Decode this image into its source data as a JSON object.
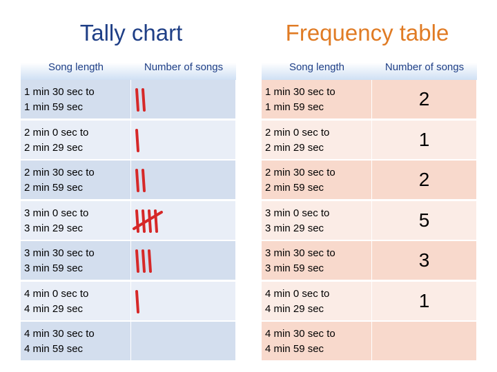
{
  "tally_chart": {
    "title": "Tally chart",
    "columns": [
      "Song length",
      "Number of songs"
    ]
  },
  "frequency_table": {
    "title": "Frequency table",
    "columns": [
      "Song length",
      "Number of songs"
    ]
  },
  "tally_color": "#d62828",
  "rows": [
    {
      "song_length": [
        "1 min 30 sec to",
        "1 min 59 sec"
      ],
      "tally": 2,
      "count": "2"
    },
    {
      "song_length": [
        "2 min 0  sec  to",
        "2 min 29 sec"
      ],
      "tally": 1,
      "count": "1"
    },
    {
      "song_length": [
        "2 min 30 sec to",
        "2 min 59 sec"
      ],
      "tally": 2,
      "count": "2"
    },
    {
      "song_length": [
        "3 min 0  sec  to",
        "3 min 29 sec"
      ],
      "tally": 5,
      "count": "5"
    },
    {
      "song_length": [
        "3 min 30 sec to",
        "3 min 59 sec"
      ],
      "tally": 3,
      "count": "3"
    },
    {
      "song_length": [
        "4 min 0 sec to",
        "4 min 29 sec"
      ],
      "tally": 1,
      "count": "1"
    },
    {
      "song_length": [
        "4 min 30 sec to",
        "4 min 59 sec"
      ],
      "tally": 0,
      "count": ""
    }
  ]
}
